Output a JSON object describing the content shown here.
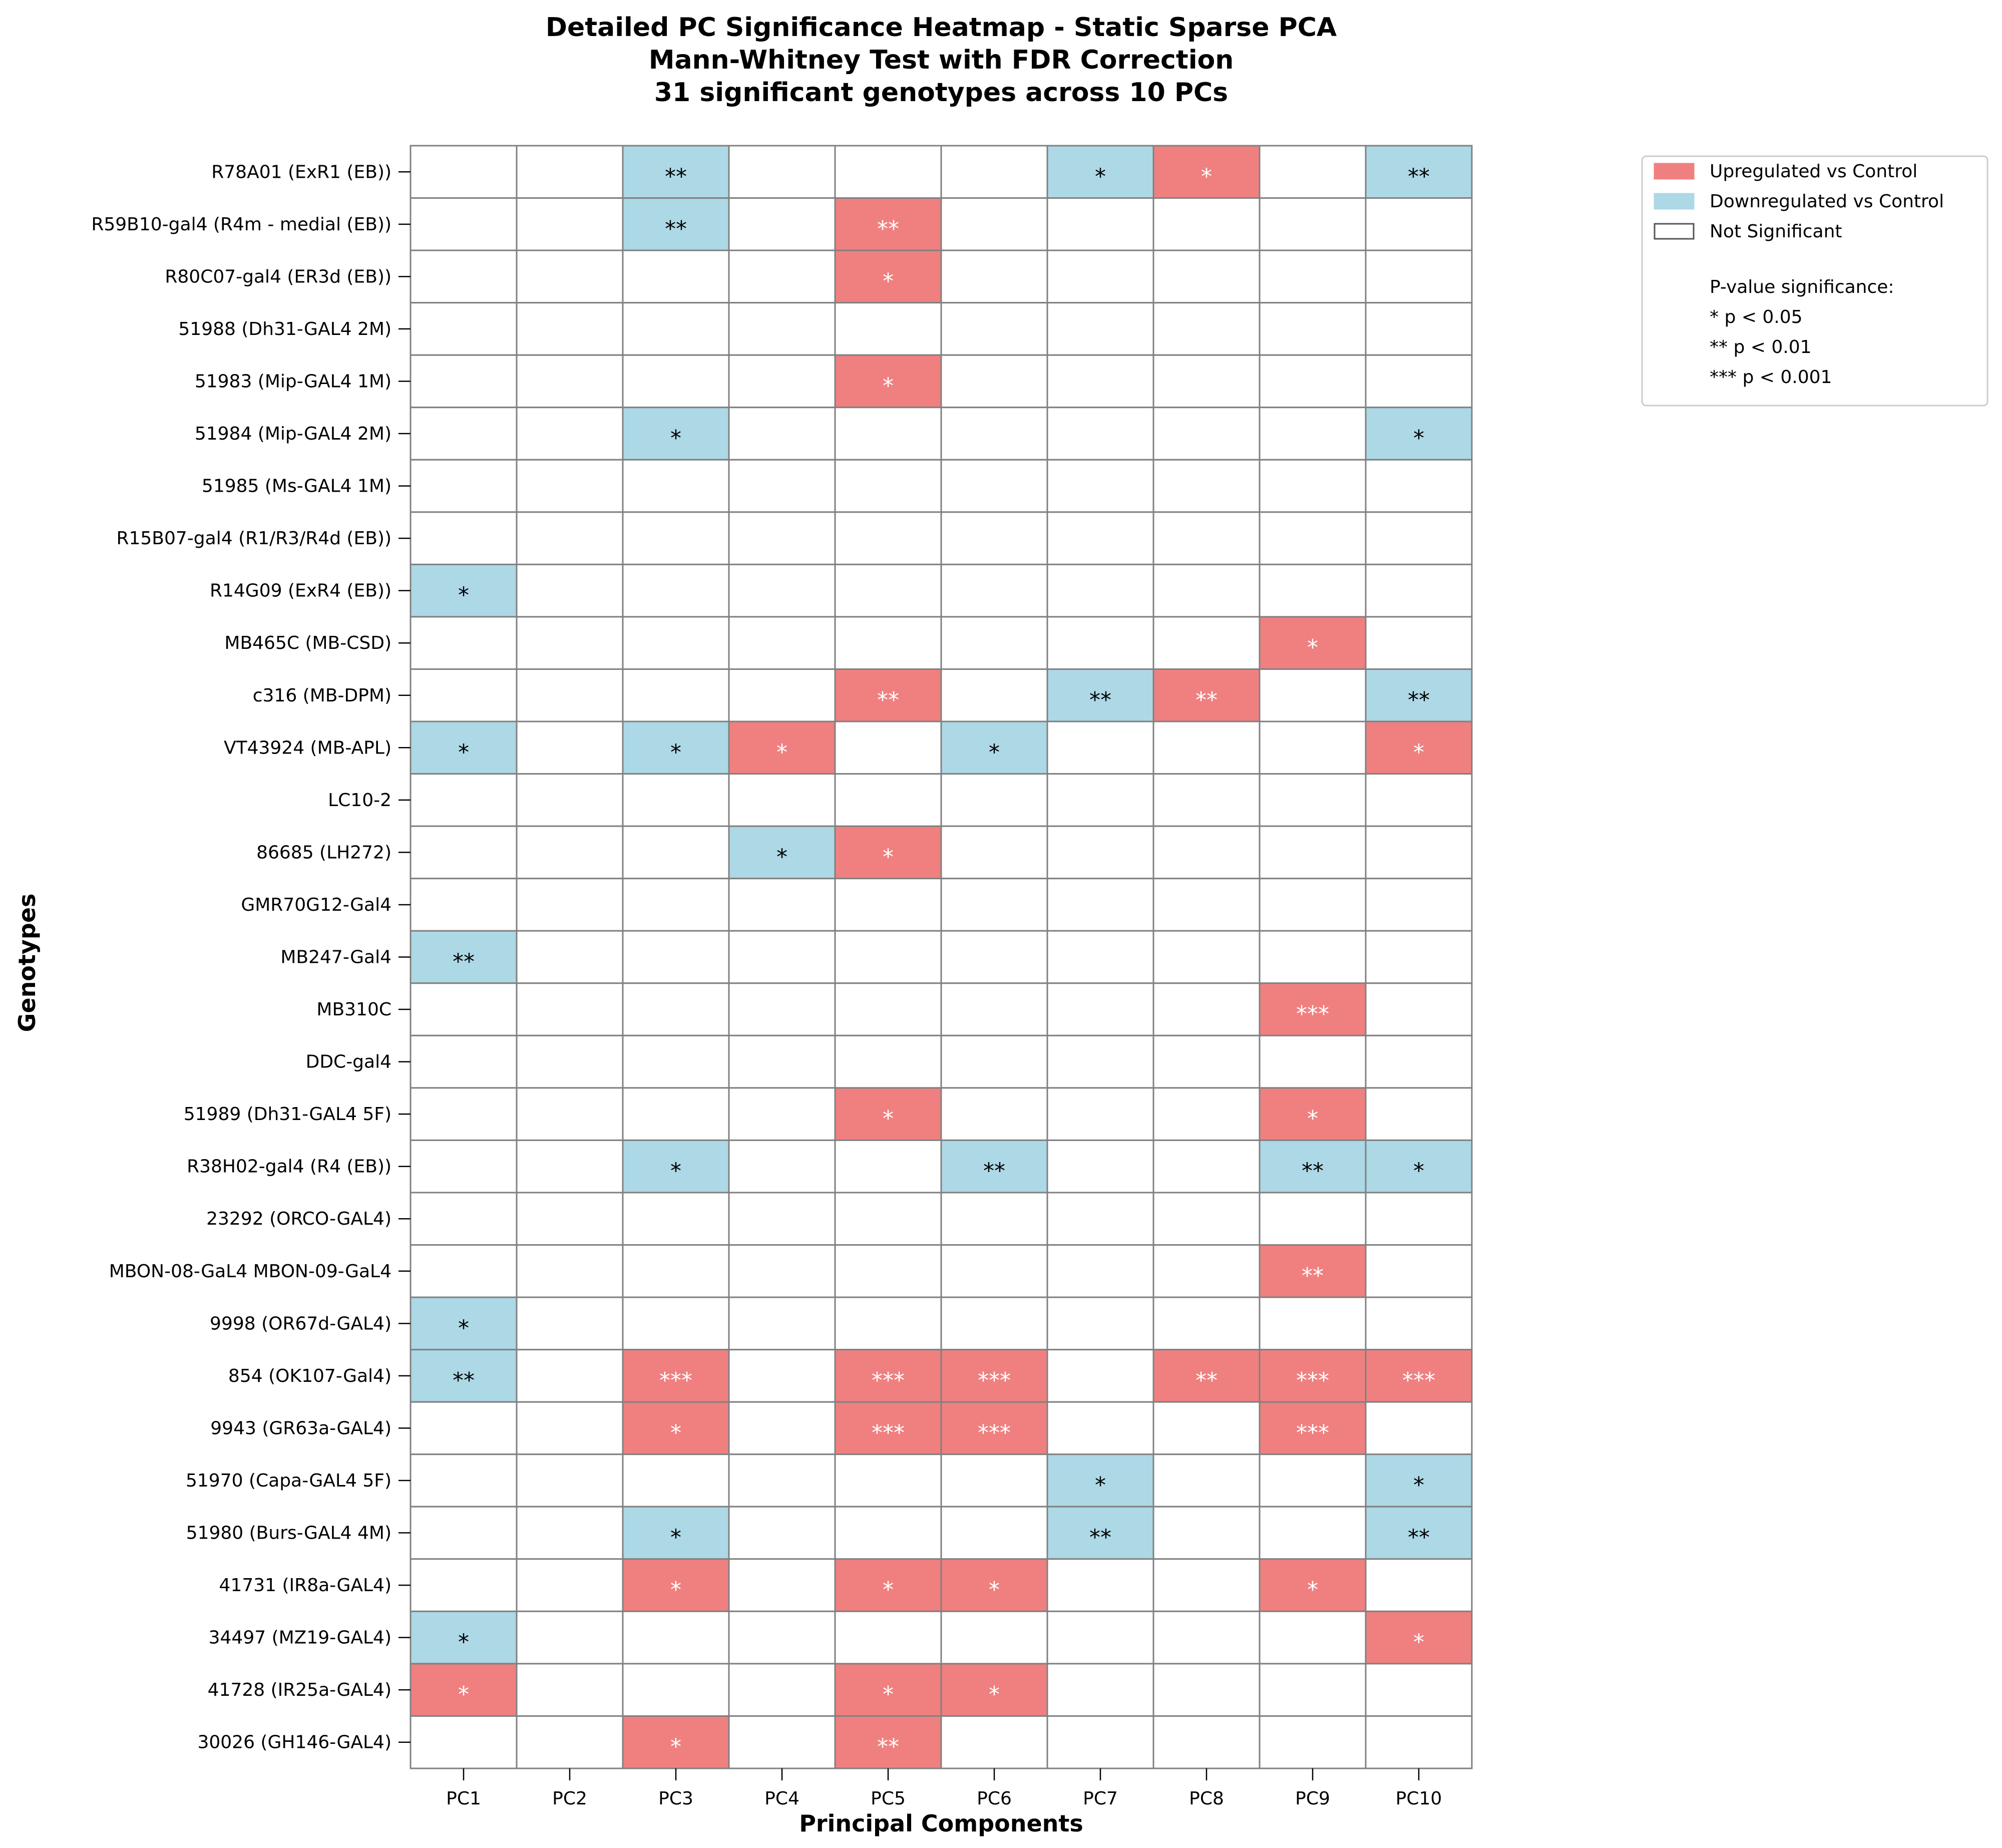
{
  "chart_data": {
    "type": "heatmap",
    "title_lines": [
      "Detailed PC Significance Heatmap - Static Sparse PCA",
      "Mann-Whitney Test with FDR Correction",
      "31 significant genotypes across 10 PCs"
    ],
    "xlabel": "Principal Components",
    "ylabel": "Genotypes",
    "columns": [
      "PC1",
      "PC2",
      "PC3",
      "PC4",
      "PC5",
      "PC6",
      "PC7",
      "PC8",
      "PC9",
      "PC10"
    ],
    "rows": [
      {
        "label": "R78A01 (ExR1 (EB))",
        "cells": [
          "",
          "",
          "-**",
          "",
          "",
          "",
          "-*",
          "+*",
          "",
          "-**"
        ]
      },
      {
        "label": "R59B10-gal4 (R4m - medial (EB))",
        "cells": [
          "",
          "",
          "-**",
          "",
          "+**",
          "",
          "",
          "",
          "",
          ""
        ]
      },
      {
        "label": "R80C07-gal4 (ER3d (EB))",
        "cells": [
          "",
          "",
          "",
          "",
          "+*",
          "",
          "",
          "",
          "",
          ""
        ]
      },
      {
        "label": "51988 (Dh31-GAL4 2M)",
        "cells": [
          "",
          "",
          "",
          "",
          "",
          "",
          "",
          "",
          "",
          ""
        ]
      },
      {
        "label": "51983 (Mip-GAL4 1M)",
        "cells": [
          "",
          "",
          "",
          "",
          "+*",
          "",
          "",
          "",
          "",
          ""
        ]
      },
      {
        "label": "51984 (Mip-GAL4 2M)",
        "cells": [
          "",
          "",
          "-*",
          "",
          "",
          "",
          "",
          "",
          "",
          "-*"
        ]
      },
      {
        "label": "51985 (Ms-GAL4 1M)",
        "cells": [
          "",
          "",
          "",
          "",
          "",
          "",
          "",
          "",
          "",
          ""
        ]
      },
      {
        "label": "R15B07-gal4 (R1/R3/R4d (EB))",
        "cells": [
          "",
          "",
          "",
          "",
          "",
          "",
          "",
          "",
          "",
          ""
        ]
      },
      {
        "label": "R14G09 (ExR4 (EB))",
        "cells": [
          "-*",
          "",
          "",
          "",
          "",
          "",
          "",
          "",
          "",
          ""
        ]
      },
      {
        "label": "MB465C (MB-CSD)",
        "cells": [
          "",
          "",
          "",
          "",
          "",
          "",
          "",
          "",
          "+*",
          ""
        ]
      },
      {
        "label": "c316 (MB-DPM)",
        "cells": [
          "",
          "",
          "",
          "",
          "+**",
          "",
          "-**",
          "+**",
          "",
          "-**"
        ]
      },
      {
        "label": "VT43924 (MB-APL)",
        "cells": [
          "-*",
          "",
          "-*",
          "+*",
          "",
          "-*",
          "",
          "",
          "",
          "+*"
        ]
      },
      {
        "label": "LC10-2",
        "cells": [
          "",
          "",
          "",
          "",
          "",
          "",
          "",
          "",
          "",
          ""
        ]
      },
      {
        "label": "86685 (LH272)",
        "cells": [
          "",
          "",
          "",
          "-*",
          "+*",
          "",
          "",
          "",
          "",
          ""
        ]
      },
      {
        "label": "GMR70G12-Gal4",
        "cells": [
          "",
          "",
          "",
          "",
          "",
          "",
          "",
          "",
          "",
          ""
        ]
      },
      {
        "label": "MB247-Gal4",
        "cells": [
          "-**",
          "",
          "",
          "",
          "",
          "",
          "",
          "",
          "",
          ""
        ]
      },
      {
        "label": "MB310C",
        "cells": [
          "",
          "",
          "",
          "",
          "",
          "",
          "",
          "",
          "+***",
          ""
        ]
      },
      {
        "label": "DDC-gal4",
        "cells": [
          "",
          "",
          "",
          "",
          "",
          "",
          "",
          "",
          "",
          ""
        ]
      },
      {
        "label": "51989 (Dh31-GAL4 5F)",
        "cells": [
          "",
          "",
          "",
          "",
          "+*",
          "",
          "",
          "",
          "+*",
          ""
        ]
      },
      {
        "label": "R38H02-gal4 (R4 (EB))",
        "cells": [
          "",
          "",
          "-*",
          "",
          "",
          "-**",
          "",
          "",
          "-**",
          "-*"
        ]
      },
      {
        "label": "23292 (ORCO-GAL4)",
        "cells": [
          "",
          "",
          "",
          "",
          "",
          "",
          "",
          "",
          "",
          ""
        ]
      },
      {
        "label": "MBON-08-GaL4  MBON-09-GaL4 ",
        "cells": [
          "",
          "",
          "",
          "",
          "",
          "",
          "",
          "",
          "+**",
          ""
        ]
      },
      {
        "label": "9998 (OR67d-GAL4)",
        "cells": [
          "-*",
          "",
          "",
          "",
          "",
          "",
          "",
          "",
          "",
          ""
        ]
      },
      {
        "label": "854 (OK107-Gal4)",
        "cells": [
          "-**",
          "",
          "+***",
          "",
          "+***",
          "+***",
          "",
          "+**",
          "+***",
          "+***"
        ]
      },
      {
        "label": "9943 (GR63a-GAL4)",
        "cells": [
          "",
          "",
          "+*",
          "",
          "+***",
          "+***",
          "",
          "",
          "+***",
          ""
        ]
      },
      {
        "label": "51970 (Capa-GAL4 5F)",
        "cells": [
          "",
          "",
          "",
          "",
          "",
          "",
          "-*",
          "",
          "",
          "-*"
        ]
      },
      {
        "label": "51980 (Burs-GAL4 4M)",
        "cells": [
          "",
          "",
          "-*",
          "",
          "",
          "",
          "-**",
          "",
          "",
          "-**"
        ]
      },
      {
        "label": "41731 (IR8a-GAL4)",
        "cells": [
          "",
          "",
          "+*",
          "",
          "+*",
          "+*",
          "",
          "",
          "+*",
          ""
        ]
      },
      {
        "label": "34497 (MZ19-GAL4)",
        "cells": [
          "-*",
          "",
          "",
          "",
          "",
          "",
          "",
          "",
          "",
          "+*"
        ]
      },
      {
        "label": "41728 (IR25a-GAL4)",
        "cells": [
          "+*",
          "",
          "",
          "",
          "+*",
          "+*",
          "",
          "",
          "",
          ""
        ]
      },
      {
        "label": "30026 (GH146-GAL4)",
        "cells": [
          "",
          "",
          "+*",
          "",
          "+**",
          "",
          "",
          "",
          "",
          ""
        ]
      }
    ],
    "legend": {
      "placement": "right, outside plot",
      "entries": [
        {
          "label": "Upregulated vs Control",
          "color": "#f08080"
        },
        {
          "label": "Downregulated vs Control",
          "color": "#add8e6"
        },
        {
          "label": "Not Significant",
          "color": "#ffffff"
        }
      ],
      "notes": [
        "P-value significance:",
        "* p < 0.05",
        "** p < 0.01",
        "*** p < 0.001"
      ]
    },
    "colors": {
      "up": "#f08080",
      "down": "#add8e6",
      "ns": "#ffffff",
      "border": "#808080"
    }
  }
}
